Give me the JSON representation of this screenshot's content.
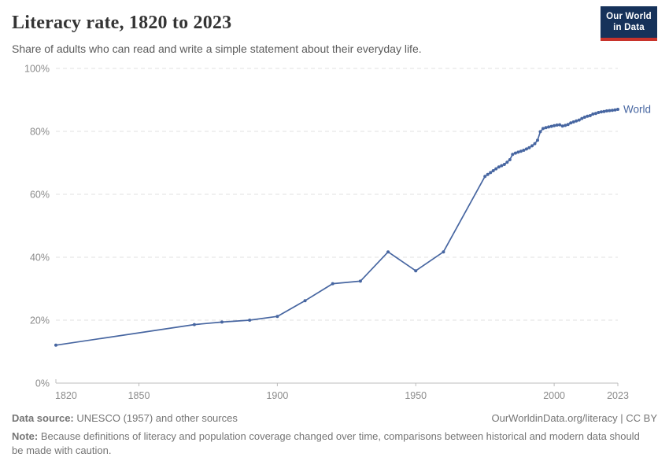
{
  "header": {
    "title": "Literacy rate, 1820 to 2023",
    "subtitle": "Share of adults who can read and write a simple statement about their everyday life.",
    "logo": {
      "line1": "Our World",
      "line2": "in Data",
      "bg_color": "#16325A",
      "accent_color": "#C8332B"
    }
  },
  "chart_data": {
    "type": "line",
    "title": "Literacy rate, 1820 to 2023",
    "xlabel": "",
    "ylabel": "",
    "xlim": [
      1820,
      2023
    ],
    "ylim": [
      0,
      100
    ],
    "xticks": [
      1820,
      1850,
      1900,
      1950,
      2000,
      2023
    ],
    "yticks": [
      0,
      20,
      40,
      60,
      80,
      100
    ],
    "ytick_suffix": "%",
    "grid": "horizontal-dashed",
    "legend": "line-end-label",
    "colors": {
      "gridline": "#e0e0e0",
      "axis": "#bcbcbc",
      "tick_label": "#8b8b8b"
    },
    "series": [
      {
        "name": "World",
        "color": "#4766A1",
        "points": [
          [
            1820,
            12.05
          ],
          [
            1870,
            18.6
          ],
          [
            1880,
            19.4
          ],
          [
            1890,
            20.0
          ],
          [
            1900,
            21.2
          ],
          [
            1910,
            26.2
          ],
          [
            1920,
            31.6
          ],
          [
            1930,
            32.4
          ],
          [
            1940,
            41.7
          ],
          [
            1950,
            35.7
          ],
          [
            1960,
            41.7
          ],
          [
            1975,
            65.7
          ],
          [
            1976,
            66.3
          ],
          [
            1977,
            66.9
          ],
          [
            1978,
            67.5
          ],
          [
            1979,
            68.1
          ],
          [
            1980,
            68.7
          ],
          [
            1981,
            69.1
          ],
          [
            1982,
            69.5
          ],
          [
            1983,
            70.2
          ],
          [
            1984,
            71.0
          ],
          [
            1985,
            72.7
          ],
          [
            1986,
            73.1
          ],
          [
            1987,
            73.4
          ],
          [
            1988,
            73.7
          ],
          [
            1989,
            74.0
          ],
          [
            1990,
            74.4
          ],
          [
            1991,
            74.8
          ],
          [
            1992,
            75.4
          ],
          [
            1993,
            76.1
          ],
          [
            1994,
            77.2
          ],
          [
            1995,
            79.9
          ],
          [
            1996,
            80.9
          ],
          [
            1997,
            81.2
          ],
          [
            1998,
            81.4
          ],
          [
            1999,
            81.6
          ],
          [
            2000,
            81.8
          ],
          [
            2001,
            82.0
          ],
          [
            2002,
            82.1
          ],
          [
            2003,
            81.7
          ],
          [
            2004,
            81.9
          ],
          [
            2005,
            82.2
          ],
          [
            2006,
            82.7
          ],
          [
            2007,
            83.0
          ],
          [
            2008,
            83.3
          ],
          [
            2009,
            83.6
          ],
          [
            2010,
            84.1
          ],
          [
            2011,
            84.5
          ],
          [
            2012,
            84.8
          ],
          [
            2013,
            85.0
          ],
          [
            2014,
            85.5
          ],
          [
            2015,
            85.7
          ],
          [
            2016,
            86.0
          ],
          [
            2017,
            86.2
          ],
          [
            2018,
            86.3
          ],
          [
            2019,
            86.5
          ],
          [
            2020,
            86.6
          ],
          [
            2021,
            86.7
          ],
          [
            2022,
            86.8
          ],
          [
            2023,
            87.0
          ]
        ]
      }
    ]
  },
  "footer": {
    "datasource_label": "Data source:",
    "datasource_text": " UNESCO (1957) and other sources",
    "link_text": "OurWorldinData.org/literacy | CC BY",
    "note_label": "Note:",
    "note_text": " Because definitions of literacy and population coverage changed over time, comparisons between historical and modern data should be made with caution."
  }
}
